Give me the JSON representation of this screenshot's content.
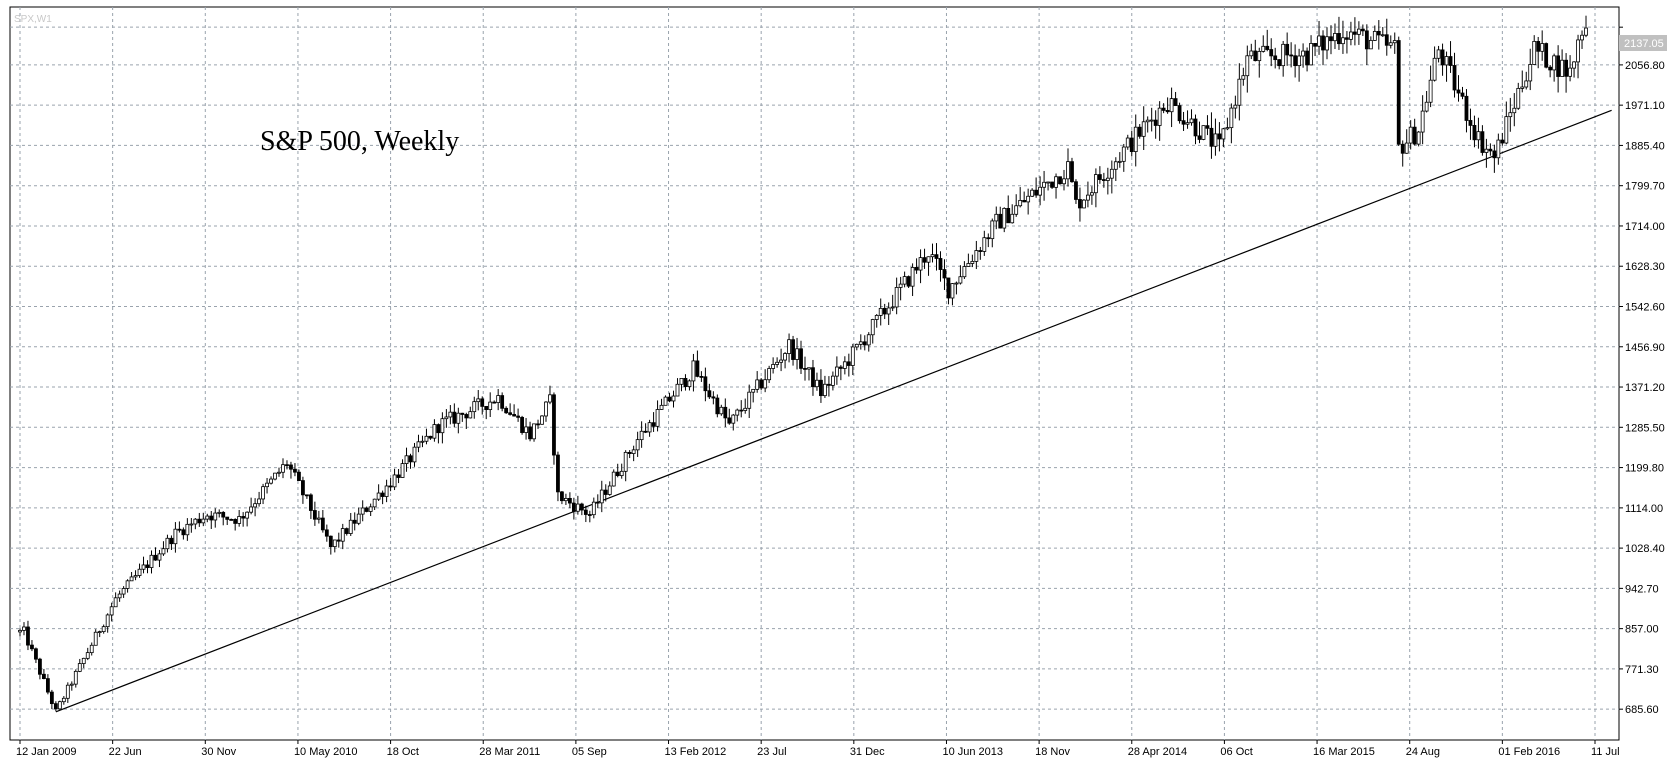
{
  "chart_data": {
    "type": "candlestick",
    "title": "S&P 500, Weekly",
    "symbol_label": "SPX,W1",
    "last_price_label": "2137.05",
    "y_ticks": [
      "2137.05",
      "2056.80",
      "1971.10",
      "1885.40",
      "1799.70",
      "1714.00",
      "1628.30",
      "1542.60",
      "1456.90",
      "1371.20",
      "1285.50",
      "1199.80",
      "1114.00",
      "1028.40",
      "942.70",
      "857.00",
      "771.30",
      "685.60"
    ],
    "x_ticks": [
      "12 Jan 2009",
      "22 Jun",
      "30 Nov",
      "10 May 2010",
      "18 Oct",
      "28 Mar 2011",
      "05 Sep",
      "13 Feb 2012",
      "23 Jul",
      "31 Dec",
      "10 Jun 2013",
      "18 Nov",
      "28 Apr 2014",
      "06 Oct",
      "16 Mar 2015",
      "24 Aug",
      "01 Feb 2016",
      "11 Jul"
    ],
    "ylim": [
      620,
      2180
    ],
    "grid": true,
    "colors": {
      "grid": "#9aa3ad",
      "candle": "#000000",
      "background": "#ffffff",
      "trendline": "#000000"
    },
    "series": [
      {
        "type": "close",
        "points": [
          [
            "2009-01-12",
            850
          ],
          [
            "2009-03-09",
            680
          ],
          [
            "2009-06-22",
            920
          ],
          [
            "2009-10-05",
            1060
          ],
          [
            "2009-11-30",
            1100
          ],
          [
            "2010-01-25",
            1090
          ],
          [
            "2010-04-19",
            1210
          ],
          [
            "2010-07-05",
            1030
          ],
          [
            "2010-10-18",
            1170
          ],
          [
            "2011-01-10",
            1290
          ],
          [
            "2011-04-25",
            1350
          ],
          [
            "2011-06-20",
            1270
          ],
          [
            "2011-07-25",
            1340
          ],
          [
            "2011-08-08",
            1140
          ],
          [
            "2011-10-03",
            1100
          ],
          [
            "2011-12-26",
            1260
          ],
          [
            "2012-04-02",
            1410
          ],
          [
            "2012-06-04",
            1290
          ],
          [
            "2012-09-17",
            1460
          ],
          [
            "2012-11-12",
            1360
          ],
          [
            "2012-12-31",
            1430
          ],
          [
            "2013-05-20",
            1660
          ],
          [
            "2013-06-24",
            1580
          ],
          [
            "2013-09-16",
            1720
          ],
          [
            "2014-01-20",
            1840
          ],
          [
            "2014-02-03",
            1760
          ],
          [
            "2014-07-14",
            1980
          ],
          [
            "2014-10-13",
            1880
          ],
          [
            "2014-12-01",
            2070
          ],
          [
            "2015-03-16",
            2080
          ],
          [
            "2015-05-18",
            2130
          ],
          [
            "2015-08-17",
            2090
          ],
          [
            "2015-08-24",
            1880
          ],
          [
            "2015-09-28",
            1920
          ],
          [
            "2015-11-02",
            2090
          ],
          [
            "2016-01-11",
            1900
          ],
          [
            "2016-02-08",
            1860
          ],
          [
            "2016-04-18",
            2090
          ],
          [
            "2016-06-20",
            2040
          ],
          [
            "2016-07-11",
            2137
          ]
        ]
      }
    ],
    "trendline": {
      "from": [
        "2009-03-09",
        680
      ],
      "to": [
        "2016-09-01",
        1960
      ]
    }
  }
}
